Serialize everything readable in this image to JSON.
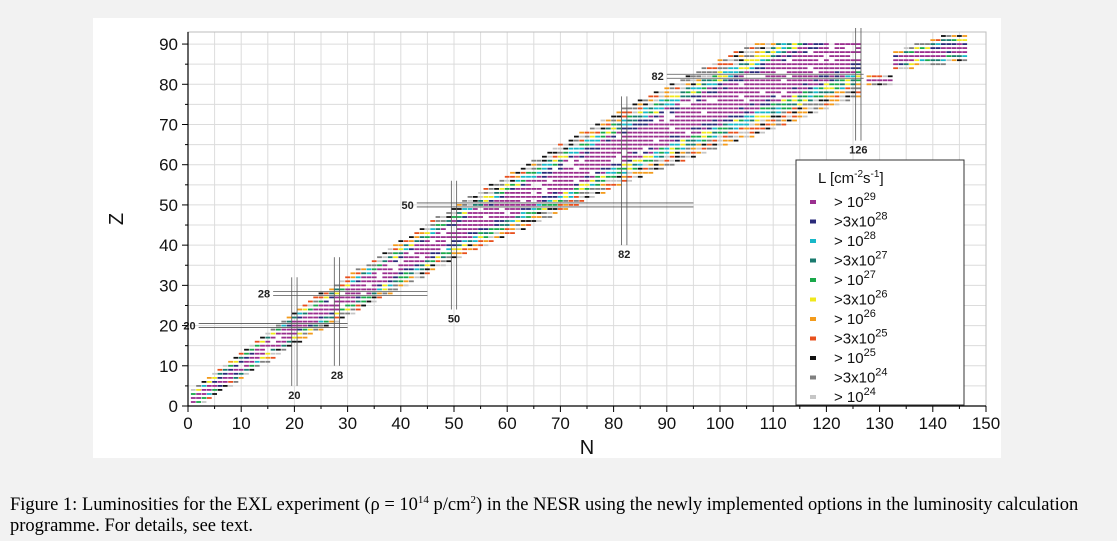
{
  "chart_data": {
    "type": "scatter",
    "title": "",
    "xlabel": "N",
    "ylabel": "Z",
    "xlim": [
      0,
      150
    ],
    "ylim": [
      0,
      93
    ],
    "x_ticks": [
      "0",
      "10",
      "20",
      "30",
      "40",
      "50",
      "60",
      "70",
      "80",
      "90",
      "100",
      "110",
      "120",
      "130",
      "140",
      "150"
    ],
    "y_ticks": [
      "0",
      "10",
      "20",
      "30",
      "40",
      "50",
      "60",
      "70",
      "80",
      "90"
    ],
    "grid": true,
    "legend_position": "right",
    "legend": {
      "title_base": "L [cm",
      "title_sup1": "-2",
      "title_mid": "s",
      "title_sup2": "-1",
      "title_end": "]",
      "entries": [
        {
          "prefix": ">",
          "coef": "",
          "base": "10",
          "exp": "29",
          "color": "#9b2f8f"
        },
        {
          "prefix": ">",
          "coef": "3x",
          "base": "10",
          "exp": "28",
          "color": "#2a2a7a"
        },
        {
          "prefix": ">",
          "coef": "",
          "base": "10",
          "exp": "28",
          "color": "#18b8c8"
        },
        {
          "prefix": ">",
          "coef": "3x",
          "base": "10",
          "exp": "27",
          "color": "#1a7a6e"
        },
        {
          "prefix": ">",
          "coef": "",
          "base": "10",
          "exp": "27",
          "color": "#19a84a"
        },
        {
          "prefix": ">",
          "coef": "3x",
          "base": "10",
          "exp": "26",
          "color": "#f0e81c"
        },
        {
          "prefix": ">",
          "coef": "",
          "base": "10",
          "exp": "26",
          "color": "#f39b1c"
        },
        {
          "prefix": ">",
          "coef": "3x",
          "base": "10",
          "exp": "25",
          "color": "#e8501e"
        },
        {
          "prefix": ">",
          "coef": "",
          "base": "10",
          "exp": "25",
          "color": "#111111"
        },
        {
          "prefix": ">",
          "coef": "3x",
          "base": "10",
          "exp": "24",
          "color": "#7f7f7f"
        },
        {
          "prefix": ">",
          "coef": "",
          "base": "10",
          "exp": "24",
          "color": "#c6c6c6"
        }
      ]
    },
    "magic_lines": [
      {
        "axis": "Z",
        "value": 20,
        "label": "20",
        "n_range": [
          2,
          30
        ]
      },
      {
        "axis": "Z",
        "value": 28,
        "label": "28",
        "n_range": [
          16,
          45
        ]
      },
      {
        "axis": "Z",
        "value": 50,
        "label": "50",
        "n_range": [
          43,
          95
        ]
      },
      {
        "axis": "Z",
        "value": 82,
        "label": "82",
        "n_range": [
          90,
          127
        ]
      },
      {
        "axis": "N",
        "value": 20,
        "label": "20",
        "z_range": [
          5,
          32
        ]
      },
      {
        "axis": "N",
        "value": 28,
        "label": "28",
        "z_range": [
          10,
          37
        ]
      },
      {
        "axis": "N",
        "value": 50,
        "label": "50",
        "z_range": [
          24,
          56
        ]
      },
      {
        "axis": "N",
        "value": 82,
        "label": "82",
        "z_range": [
          40,
          77
        ]
      },
      {
        "axis": "N",
        "value": 126,
        "label": "126",
        "z_range": [
          66,
          94
        ]
      }
    ],
    "data_regions": [
      {
        "n_range": [
          1,
          126
        ],
        "description": "nuclide chart band, Z from 1 to 90"
      },
      {
        "n_range": [
          128,
          146
        ],
        "description": "heavy actinide region, Z from 80 to 92"
      }
    ]
  },
  "caption": {
    "prefix": "Figure 1: Luminosities for the EXL experiment (",
    "rho": "ρ = 10",
    "rho_exp": "14",
    "unit": " p/cm",
    "unit_exp": "2",
    "rest": ") in the NESR using the newly implemented options in the luminosity calculation programme. For details, see text."
  }
}
